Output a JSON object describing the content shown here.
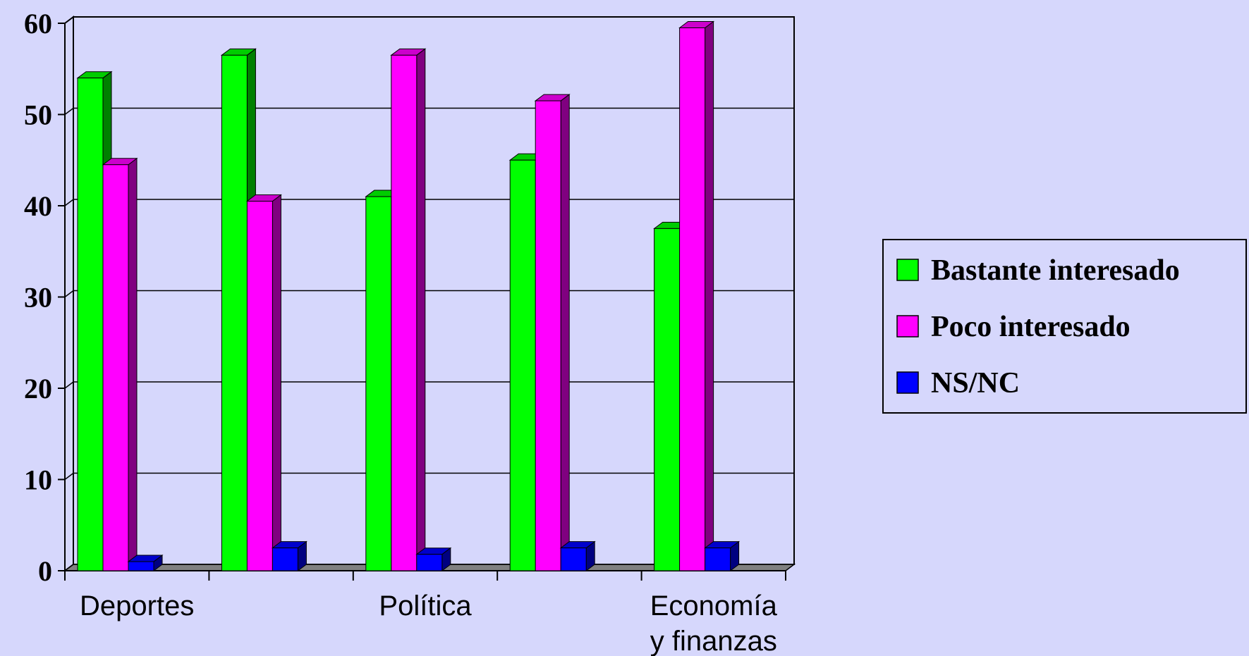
{
  "chart_data": {
    "type": "bar",
    "style": "3d-clustered-column",
    "title": "",
    "xlabel": "",
    "ylabel": "",
    "ylim": [
      0,
      60
    ],
    "y_ticks": [
      0,
      10,
      20,
      30,
      40,
      50,
      60
    ],
    "grid": true,
    "legend_position": "right",
    "categories": [
      "Deportes",
      "",
      "Política",
      "",
      "Economía\ny finanzas"
    ],
    "series": [
      {
        "name": "Bastante interesado",
        "color": "#00ff00",
        "values": [
          54,
          56.5,
          41,
          45,
          37.5
        ]
      },
      {
        "name": "Poco interesado",
        "color": "#ff00ff",
        "values": [
          44.5,
          40.5,
          56.5,
          51.5,
          59.5
        ]
      },
      {
        "name": "NS/NC",
        "color": "#0000ff",
        "values": [
          1,
          2.5,
          1.8,
          2.5,
          2.5
        ]
      }
    ],
    "colors": {
      "background": "#d6d7fc",
      "floor": "#808080"
    }
  }
}
